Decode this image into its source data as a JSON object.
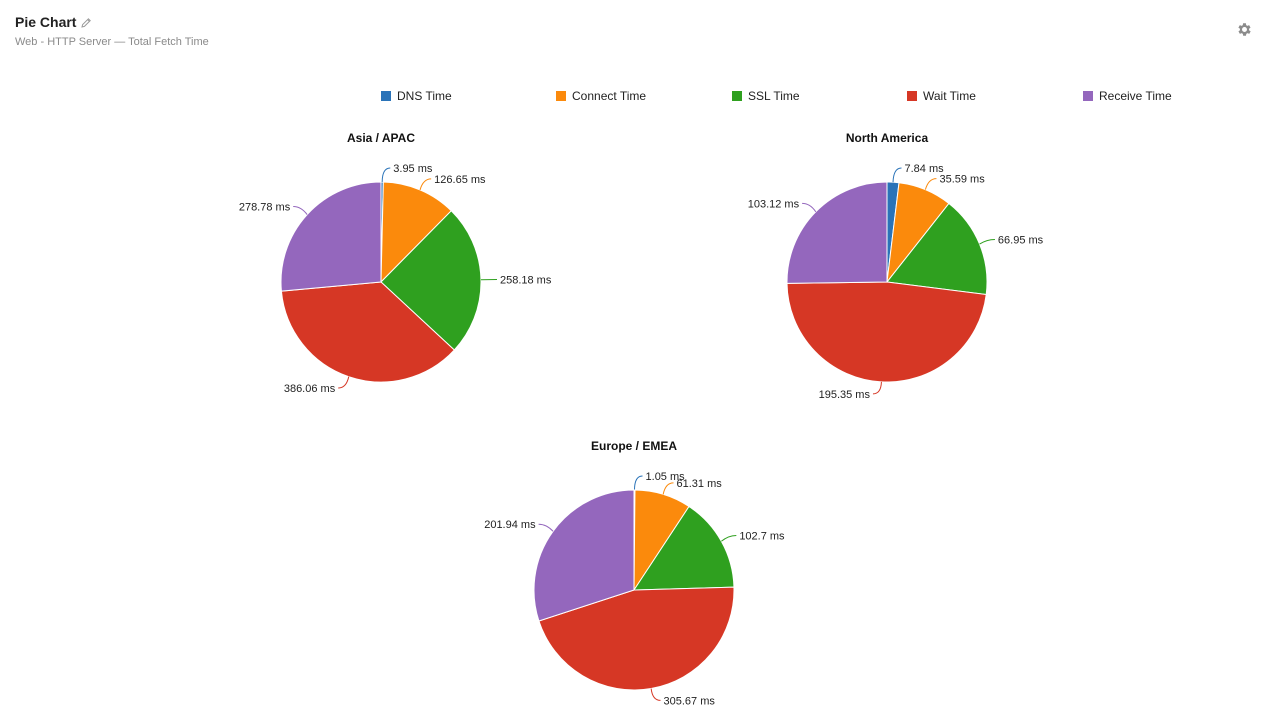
{
  "header": {
    "title": "Pie Chart",
    "subtitle": "Web - HTTP Server — Total Fetch Time"
  },
  "icons": {
    "edit": "pencil-icon",
    "settings": "gear-icon"
  },
  "legend": {
    "items": [
      {
        "label": "DNS Time",
        "color": "#2a73b8"
      },
      {
        "label": "Connect Time",
        "color": "#fb8a0c"
      },
      {
        "label": "SSL Time",
        "color": "#2fa01f"
      },
      {
        "label": "Wait Time",
        "color": "#d63725"
      },
      {
        "label": "Receive Time",
        "color": "#9467bd"
      }
    ]
  },
  "chart_data": [
    {
      "type": "pie",
      "title": "Asia / APAC",
      "unit": "ms",
      "categories": [
        "DNS Time",
        "Connect Time",
        "SSL Time",
        "Wait Time",
        "Receive Time"
      ],
      "values": [
        3.95,
        126.65,
        258.18,
        386.06,
        278.78
      ],
      "labels": [
        "3.95 ms",
        "126.65 ms",
        "258.18 ms",
        "386.06 ms",
        "278.78 ms"
      ]
    },
    {
      "type": "pie",
      "title": "North America",
      "unit": "ms",
      "categories": [
        "DNS Time",
        "Connect Time",
        "SSL Time",
        "Wait Time",
        "Receive Time"
      ],
      "values": [
        7.84,
        35.59,
        66.95,
        195.35,
        103.12
      ],
      "labels": [
        "7.84 ms",
        "35.59 ms",
        "66.95 ms",
        "195.35 ms",
        "103.12 ms"
      ]
    },
    {
      "type": "pie",
      "title": "Europe / EMEA",
      "unit": "ms",
      "categories": [
        "DNS Time",
        "Connect Time",
        "SSL Time",
        "Wait Time",
        "Receive Time"
      ],
      "values": [
        1.05,
        61.31,
        102.7,
        305.67,
        201.94
      ],
      "labels": [
        "1.05 ms",
        "61.31 ms",
        "102.7 ms",
        "305.67 ms",
        "201.94 ms"
      ]
    }
  ]
}
